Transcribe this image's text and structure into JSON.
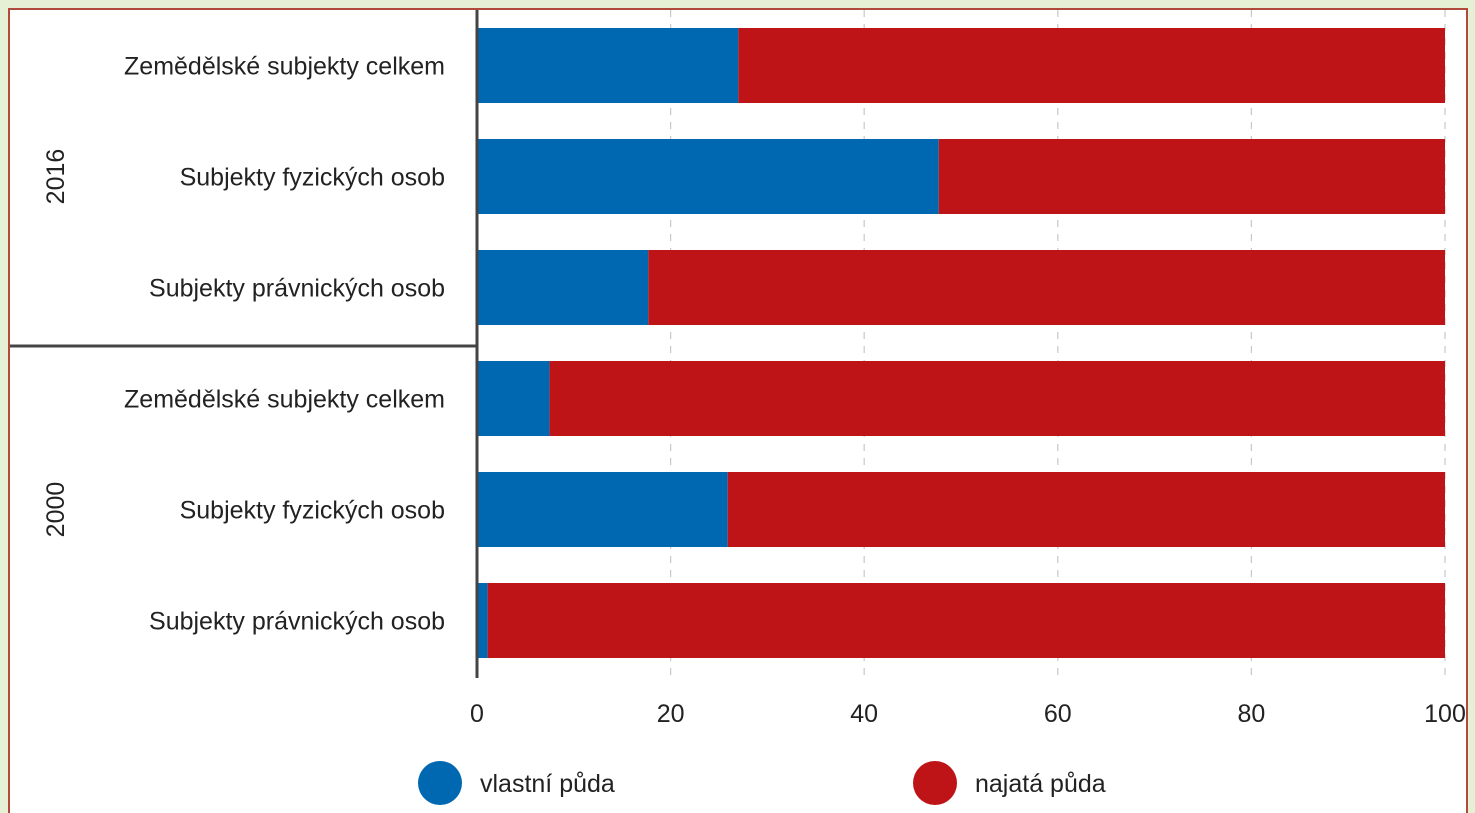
{
  "chart_data": {
    "type": "bar",
    "orientation": "horizontal",
    "stacked": true,
    "xlim": [
      0,
      100
    ],
    "xticks": [
      0,
      20,
      40,
      60,
      80,
      100
    ],
    "grid": "vertical dashed",
    "legend_position": "bottom",
    "groups": [
      {
        "label": "2016",
        "categories": [
          "Zemědělské subjekty celkem",
          "Subjekty fyzických osob",
          "Subjekty právnických osob"
        ],
        "own": [
          27,
          47.7,
          17.7
        ],
        "rented": [
          73,
          52.3,
          82.3
        ]
      },
      {
        "label": "2000",
        "categories": [
          "Zemědělské subjekty celkem",
          "Subjekty fyzických osob",
          "Subjekty právnických osob"
        ],
        "own": [
          7.5,
          25.9,
          1.1
        ],
        "rented": [
          92.5,
          74.1,
          98.9
        ]
      }
    ],
    "series": [
      {
        "name": "vlastní půda",
        "color": "#0067b1"
      },
      {
        "name": "najatá půda",
        "color": "#be1417"
      }
    ]
  }
}
